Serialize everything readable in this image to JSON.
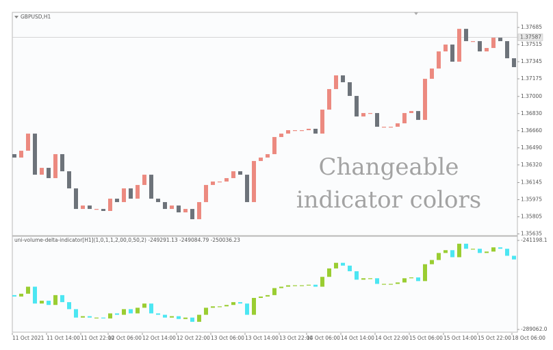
{
  "chart_data": [
    {
      "type": "candlestick",
      "title": "GBPUSD,H1",
      "categories": [
        "11 Oct 2021",
        null,
        null,
        null,
        null,
        "11 Oct 14:00",
        null,
        null,
        null,
        null,
        "11 Oct 22:00",
        null,
        null,
        null,
        "12 Oct 06:00",
        null,
        null,
        null,
        null,
        "12 Oct 14:00",
        null,
        null,
        null,
        null,
        "12 Oct 22:00",
        null,
        null,
        null,
        null,
        "13 Oct 06:00",
        null,
        null,
        null,
        null,
        "13 Oct 14:00",
        null,
        null,
        null,
        null,
        "13 Oct 22:00",
        null,
        null,
        null,
        "14 Oct 06:00",
        null,
        null,
        null,
        null,
        "14 Oct 14:00",
        null,
        null,
        null,
        null,
        "14 Oct 22:00",
        null,
        null,
        null,
        null,
        "15 Oct 06:00",
        null,
        null,
        null,
        null,
        "15 Oct 14:00",
        null,
        null,
        null,
        null,
        "15 Oct 22:00",
        null,
        null,
        null,
        null,
        "18 Oct 06:00"
      ],
      "open": [
        1.36427,
        1.36393,
        1.36461,
        1.36631,
        1.36223,
        1.36291,
        1.36189,
        1.36427,
        1.36257,
        1.36087,
        1.35883,
        1.35917,
        1.35883,
        1.35883,
        1.35863,
        1.35985,
        1.35951,
        1.36087,
        1.35985,
        1.36121,
        1.36223,
        1.35985,
        1.35951,
        1.35883,
        1.35917,
        1.35849,
        1.35883,
        1.35781,
        1.35951,
        1.36121,
        1.36155,
        1.36155,
        1.36189,
        1.36257,
        1.36223,
        1.35951,
        1.36359,
        1.36393,
        1.36427,
        1.36597,
        1.36631,
        1.36665,
        1.36665,
        1.36665,
        1.36679,
        1.36631,
        1.36869,
        1.37073,
        1.37209,
        1.37141,
        1.37005,
        1.36801,
        1.36835,
        1.36835,
        1.36699,
        1.36699,
        1.36699,
        1.36733,
        1.36835,
        1.36855,
        1.36767,
        1.37175,
        1.37277,
        1.37447,
        1.37515,
        1.37345,
        1.37671,
        1.37549,
        1.37549,
        1.37447,
        1.37481,
        1.37583,
        1.37549,
        1.37379
      ],
      "close": [
        1.36393,
        1.36461,
        1.36631,
        1.36223,
        1.36291,
        1.36189,
        1.36427,
        1.36257,
        1.36087,
        1.35883,
        1.35917,
        1.35883,
        1.35883,
        1.35863,
        1.35985,
        1.35951,
        1.36087,
        1.35985,
        1.36121,
        1.36223,
        1.35985,
        1.35951,
        1.35883,
        1.35917,
        1.35849,
        1.35883,
        1.35781,
        1.35951,
        1.36121,
        1.36155,
        1.36155,
        1.36189,
        1.36257,
        1.36223,
        1.35951,
        1.36359,
        1.36393,
        1.36427,
        1.36597,
        1.36631,
        1.36665,
        1.36665,
        1.36665,
        1.36679,
        1.36631,
        1.36869,
        1.37073,
        1.37209,
        1.37141,
        1.37005,
        1.36801,
        1.36835,
        1.36835,
        1.36699,
        1.36699,
        1.36699,
        1.36733,
        1.36835,
        1.36855,
        1.36767,
        1.37175,
        1.37277,
        1.37447,
        1.37515,
        1.37345,
        1.37671,
        1.37549,
        1.37549,
        1.37447,
        1.37481,
        1.37583,
        1.37549,
        1.37379,
        1.37291
      ],
      "up_color": "#ec8a80",
      "down_color": "#6d737a",
      "ylim": [
        1.35625,
        1.37835
      ],
      "yticks": [
        1.37685,
        1.37515,
        1.37345,
        1.37175,
        {
          "value": 1.37,
          "label": "1.37000"
        },
        {
          "value": 1.3683,
          "label": "1.36830"
        },
        {
          "value": 1.3666,
          "label": "1.36660"
        },
        {
          "value": 1.3649,
          "label": "1.36490"
        },
        {
          "value": 1.3632,
          "label": "1.36320"
        },
        1.36145,
        1.35975,
        1.35805,
        1.35635
      ],
      "price_line": 1.37587,
      "annotation": [
        "Changeable",
        "indicator colors"
      ]
    },
    {
      "type": "candlestick",
      "title": "uni-volume-delta-indicator[H1](1,0,1,1,2,00,0,50,2) -249291.13 -249084.79 -250036.23",
      "open": [
        -270606,
        -271361,
        -269851,
        -266076,
        -275136,
        -273626,
        -275891,
        -270606,
        -274381,
        -278156,
        -282686,
        -281931,
        -282686,
        -282686,
        -283139,
        -280421,
        -281176,
        -278156,
        -280421,
        -277401,
        -275136,
        -280421,
        -281176,
        -282686,
        -281931,
        -283441,
        -282686,
        -284951,
        -281176,
        -277401,
        -276646,
        -276646,
        -275891,
        -274381,
        -275136,
        -281176,
        -272116,
        -271361,
        -270606,
        -266831,
        -266076,
        -265321,
        -265321,
        -265321,
        -265019,
        -266076,
        -260791,
        -256261,
        -253241,
        -254751,
        -257771,
        -262301,
        -261546,
        -261546,
        -264566,
        -264566,
        -264566,
        -263811,
        -261546,
        -261093,
        -263056,
        -253996,
        -251731,
        -247956,
        -246446,
        -250221,
        -242973,
        -245691,
        -245691,
        -247956,
        -247201,
        -244936,
        -245691,
        -249466
      ],
      "close": [
        -271361,
        -269851,
        -266076,
        -275136,
        -273626,
        -275891,
        -270606,
        -274381,
        -278156,
        -282686,
        -281931,
        -282686,
        -282686,
        -283139,
        -280421,
        -281176,
        -278156,
        -280421,
        -277401,
        -275136,
        -280421,
        -281176,
        -282686,
        -281931,
        -283441,
        -282686,
        -284951,
        -281176,
        -277401,
        -276646,
        -276646,
        -275891,
        -274381,
        -275136,
        -281176,
        -272116,
        -271361,
        -270606,
        -266831,
        -266076,
        -265321,
        -265321,
        -265321,
        -265019,
        -266076,
        -260791,
        -256261,
        -253241,
        -254751,
        -257771,
        -262301,
        -261546,
        -261546,
        -264566,
        -264566,
        -264566,
        -263811,
        -261546,
        -261093,
        -263056,
        -253996,
        -251731,
        -247956,
        -246446,
        -250221,
        -242973,
        -245691,
        -245691,
        -247956,
        -247201,
        -244936,
        -245691,
        -249466,
        -251429
      ],
      "up_color": "#9acd32",
      "down_color": "#4ce6f2",
      "ylim": [
        -289062.0,
        -241198.1
      ],
      "yticks": [
        {
          "value": -241198.1,
          "label": "-241198.1"
        },
        {
          "value": -289062.0,
          "label": "-289062.0"
        }
      ]
    }
  ]
}
